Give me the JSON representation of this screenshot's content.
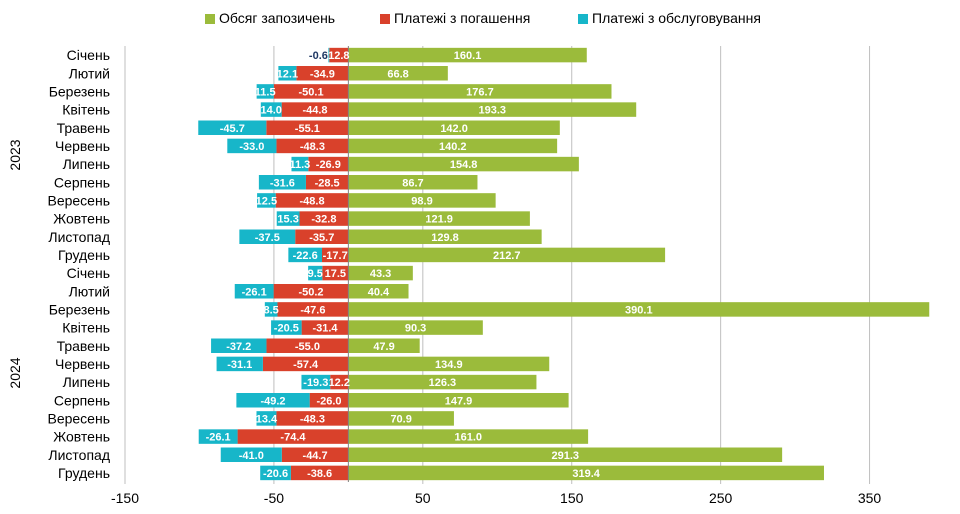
{
  "chart_data": {
    "type": "bar",
    "orientation": "horizontal",
    "stacked": true,
    "xlim": [
      -150,
      400
    ],
    "xticks": [
      -150,
      -50,
      50,
      150,
      250,
      350
    ],
    "grid": true,
    "legend_position": "top",
    "groups": [
      {
        "label": "2023",
        "start": 0,
        "end": 11
      },
      {
        "label": "2024",
        "start": 12,
        "end": 23
      }
    ],
    "categories": [
      "Січень",
      "Лютий",
      "Березень",
      "Квітень",
      "Травень",
      "Червень",
      "Липень",
      "Серпень",
      "Вересень",
      "Жовтень",
      "Листопад",
      "Грудень",
      "Січень",
      "Лютий",
      "Березень",
      "Квітень",
      "Травень",
      "Червень",
      "Липень",
      "Серпень",
      "Вересень",
      "Жовтень",
      "Листопад",
      "Грудень"
    ],
    "series": [
      {
        "name": "Обсяг запозичень",
        "color": "#9bbb3b",
        "values": [
          160.1,
          66.8,
          176.7,
          193.3,
          142.0,
          140.2,
          154.8,
          86.7,
          98.9,
          121.9,
          129.8,
          212.7,
          43.3,
          40.4,
          390.1,
          90.3,
          47.9,
          134.9,
          126.3,
          147.9,
          70.9,
          161.0,
          291.3,
          319.4
        ],
        "labels": [
          "160.1",
          "66.8",
          "176.7",
          "193.3",
          "142.0",
          "140.2",
          "154.8",
          "86.7",
          "98.9",
          "121.9",
          "129.8",
          "212.7",
          "43.3",
          "40.4",
          "390.1",
          "90.3",
          "47.9",
          "134.9",
          "126.3",
          "147.9",
          "70.9",
          "161.0",
          "291.3",
          "319.4"
        ]
      },
      {
        "name": "Платежі з погашення",
        "color": "#d9412b",
        "values": [
          -12.8,
          -34.9,
          -50.1,
          -44.8,
          -55.1,
          -48.3,
          -26.9,
          -28.5,
          -48.8,
          -32.8,
          -35.7,
          -17.7,
          -17.5,
          -50.2,
          -47.6,
          -31.4,
          -55.0,
          -57.4,
          -12.2,
          -26.0,
          -48.3,
          -74.4,
          -44.7,
          -38.6
        ],
        "labels": [
          "12.8",
          "-34.9",
          "-50.1",
          "-44.8",
          "-55.1",
          "-48.3",
          "-26.9",
          "-28.5",
          "-48.8",
          "-32.8",
          "-35.7",
          "-17.7",
          "17.5",
          "-50.2",
          "-47.6",
          "-31.4",
          "-55.0",
          "-57.4",
          "12.2",
          "-26.0",
          "-48.3",
          "-74.4",
          "-44.7",
          "-38.6"
        ]
      },
      {
        "name": "Платежі з обслуговування",
        "color": "#17b6c9",
        "values": [
          -0.6,
          -12.1,
          -11.5,
          -14.0,
          -45.7,
          -33.0,
          -11.3,
          -31.6,
          -12.5,
          -15.3,
          -37.5,
          -22.6,
          -9.5,
          -26.1,
          -8.5,
          -20.5,
          -37.2,
          -31.1,
          -19.3,
          -49.2,
          -13.4,
          -26.1,
          -41.0,
          -20.6
        ],
        "labels": [
          "-0.6",
          "12.1",
          "11.5",
          "14.0",
          "-45.7",
          "-33.0",
          "11.3",
          "-31.6",
          "12.5",
          "15.3",
          "-37.5",
          "-22.6",
          "9.5",
          "-26.1",
          "8.5",
          "-20.5",
          "-37.2",
          "-31.1",
          "-19.3",
          "-49.2",
          "13.4",
          "-26.1",
          "-41.0",
          "-20.6"
        ]
      }
    ]
  }
}
